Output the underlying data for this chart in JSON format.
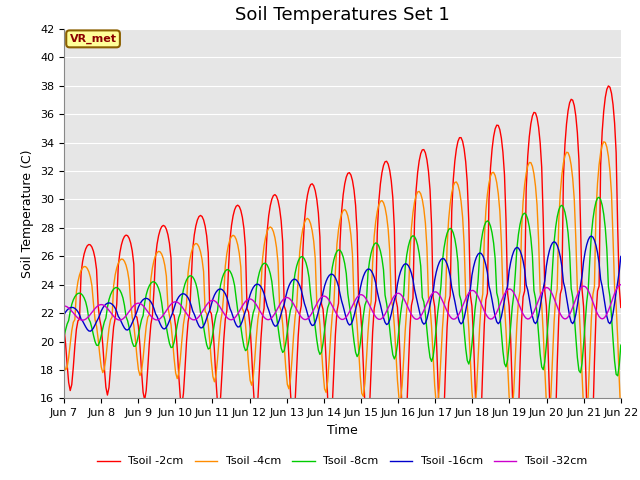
{
  "title": "Soil Temperatures Set 1",
  "xlabel": "Time",
  "ylabel": "Soil Temperature (C)",
  "ylim": [
    16,
    42
  ],
  "xtick_labels": [
    "Jun 7",
    "Jun 8",
    "Jun 9",
    "Jun 10",
    "Jun 11",
    "Jun 12",
    "Jun 13",
    "Jun 14",
    "Jun 15",
    "Jun 16",
    "Jun 17",
    "Jun 18",
    "Jun 19",
    "Jun 20",
    "Jun 21",
    "Jun 22"
  ],
  "series_names": [
    "Tsoil -2cm",
    "Tsoil -4cm",
    "Tsoil -8cm",
    "Tsoil -16cm",
    "Tsoil -32cm"
  ],
  "series_colors": [
    "#ff0000",
    "#ff8c00",
    "#00cc00",
    "#0000cc",
    "#cc00cc"
  ],
  "series_linewidths": [
    1.0,
    1.0,
    1.0,
    1.0,
    1.0
  ],
  "annotation_text": "VR_met",
  "bg_color": "#e6e6e6",
  "title_fontsize": 13,
  "axis_fontsize": 9,
  "tick_fontsize": 8
}
